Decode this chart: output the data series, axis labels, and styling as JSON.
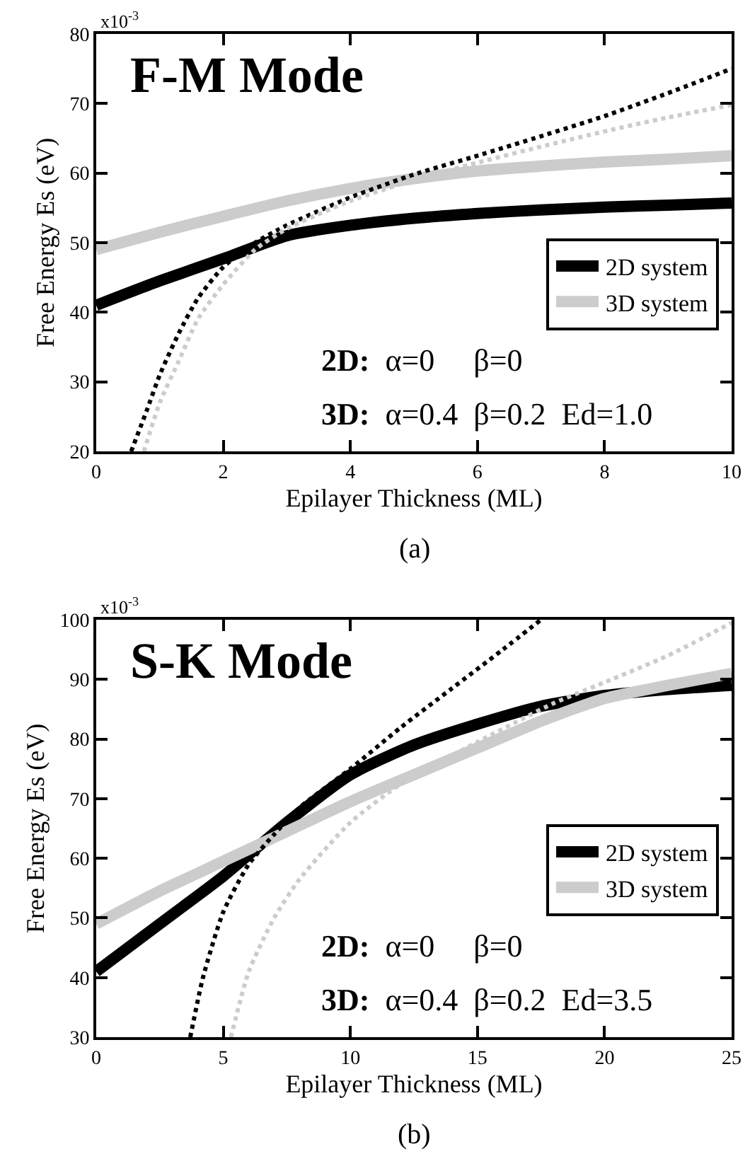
{
  "chart_data": [
    {
      "type": "line",
      "title": "F-M Mode",
      "xlabel": "Epilayer Thickness (ML)",
      "ylabel": "Free Energy Es (eV)",
      "annotations": [
        "x10$^{-3}$",
        "2D:  α=0     β=0",
        "3D:  α=0.4  β=0.2  Ed=1.0",
        "(a)"
      ],
      "xlim": [
        0,
        10
      ],
      "xticks": [
        0,
        2,
        4,
        6,
        8,
        10
      ],
      "ylim": [
        20,
        80
      ],
      "yticks": [
        20,
        30,
        40,
        50,
        60,
        70,
        80
      ],
      "grid": false,
      "legend": "right",
      "marker": "none",
      "series": [
        {
          "name": "2D system",
          "color": "#000000",
          "line_style": "solid",
          "x": [
            0,
            1,
            2,
            3,
            4,
            5,
            6,
            7,
            8,
            9,
            10
          ],
          "values": [
            41,
            44.5,
            47.7,
            51,
            52.5,
            53.5,
            54.2,
            54.7,
            55.1,
            55.4,
            55.7
          ]
        },
        {
          "name": "3D system",
          "color": "#cccccc",
          "line_style": "solid",
          "x": [
            0,
            1,
            2,
            3,
            4,
            5,
            6,
            7,
            8,
            9,
            10
          ],
          "values": [
            49,
            51.5,
            53.8,
            56,
            57.8,
            59.2,
            60.3,
            61,
            61.6,
            62,
            62.5
          ]
        },
        {
          "color": "#000000",
          "line_style": "dotted",
          "x": [
            0.55,
            0.8,
            1,
            1.3,
            1.6,
            2,
            2.5,
            3,
            4,
            5,
            6,
            7,
            8,
            9,
            10
          ],
          "values": [
            20,
            26,
            31,
            37,
            42,
            46.5,
            50,
            52.5,
            56.5,
            59.8,
            62.5,
            65.3,
            68.2,
            71.5,
            75
          ]
        },
        {
          "color": "#cccccc",
          "line_style": "dotted",
          "x": [
            0.75,
            1,
            1.3,
            1.6,
            2,
            2.5,
            3,
            4,
            5,
            6,
            7,
            8,
            9,
            10
          ],
          "values": [
            20,
            27,
            33,
            39,
            44,
            49,
            52,
            56,
            59,
            61.5,
            63.8,
            66,
            68,
            69.8
          ]
        }
      ]
    },
    {
      "type": "line",
      "title": "S-K Mode",
      "xlabel": "Epilayer Thickness (ML)",
      "ylabel": "Free Energy Es (eV)",
      "annotations": [
        "x10$^{-3}$",
        "2D:  α=0     β=0",
        "3D:  α=0.4  β=0.2  Ed=3.5",
        "(b)"
      ],
      "xlim": [
        0,
        25
      ],
      "xticks": [
        0,
        5,
        10,
        15,
        20,
        25
      ],
      "ylim": [
        30,
        100
      ],
      "yticks": [
        30,
        40,
        50,
        60,
        70,
        80,
        90,
        100
      ],
      "grid": false,
      "legend": "right",
      "marker": "none",
      "series": [
        {
          "name": "2D system",
          "color": "#000000",
          "line_style": "solid",
          "x": [
            0,
            2.5,
            5,
            7.5,
            10,
            12.5,
            15,
            17.5,
            20,
            22.5,
            25
          ],
          "values": [
            41,
            49,
            57,
            66,
            74,
            79,
            82.5,
            85.5,
            87.3,
            88.3,
            89
          ]
        },
        {
          "name": "3D system",
          "color": "#cccccc",
          "line_style": "solid",
          "x": [
            0,
            2.5,
            5,
            7.5,
            10,
            12.5,
            15,
            17.5,
            20,
            22.5,
            25
          ],
          "values": [
            49,
            54.5,
            59.5,
            64.5,
            69.5,
            74,
            78.5,
            83,
            86.8,
            89,
            91
          ]
        },
        {
          "color": "#000000",
          "line_style": "dotted",
          "x": [
            3.7,
            4.2,
            5,
            6,
            7,
            8,
            10,
            12,
            14,
            16,
            17.5
          ],
          "values": [
            30,
            40,
            51,
            59,
            64,
            68.5,
            75,
            82,
            88.5,
            95,
            100
          ]
        },
        {
          "color": "#cccccc",
          "line_style": "dotted",
          "x": [
            5.3,
            6,
            7,
            8,
            10,
            12,
            15,
            18,
            20,
            22.5,
            25
          ],
          "values": [
            30,
            41,
            50,
            56.5,
            66,
            72.5,
            79.5,
            86,
            89.5,
            94,
            99.5
          ]
        }
      ]
    }
  ]
}
